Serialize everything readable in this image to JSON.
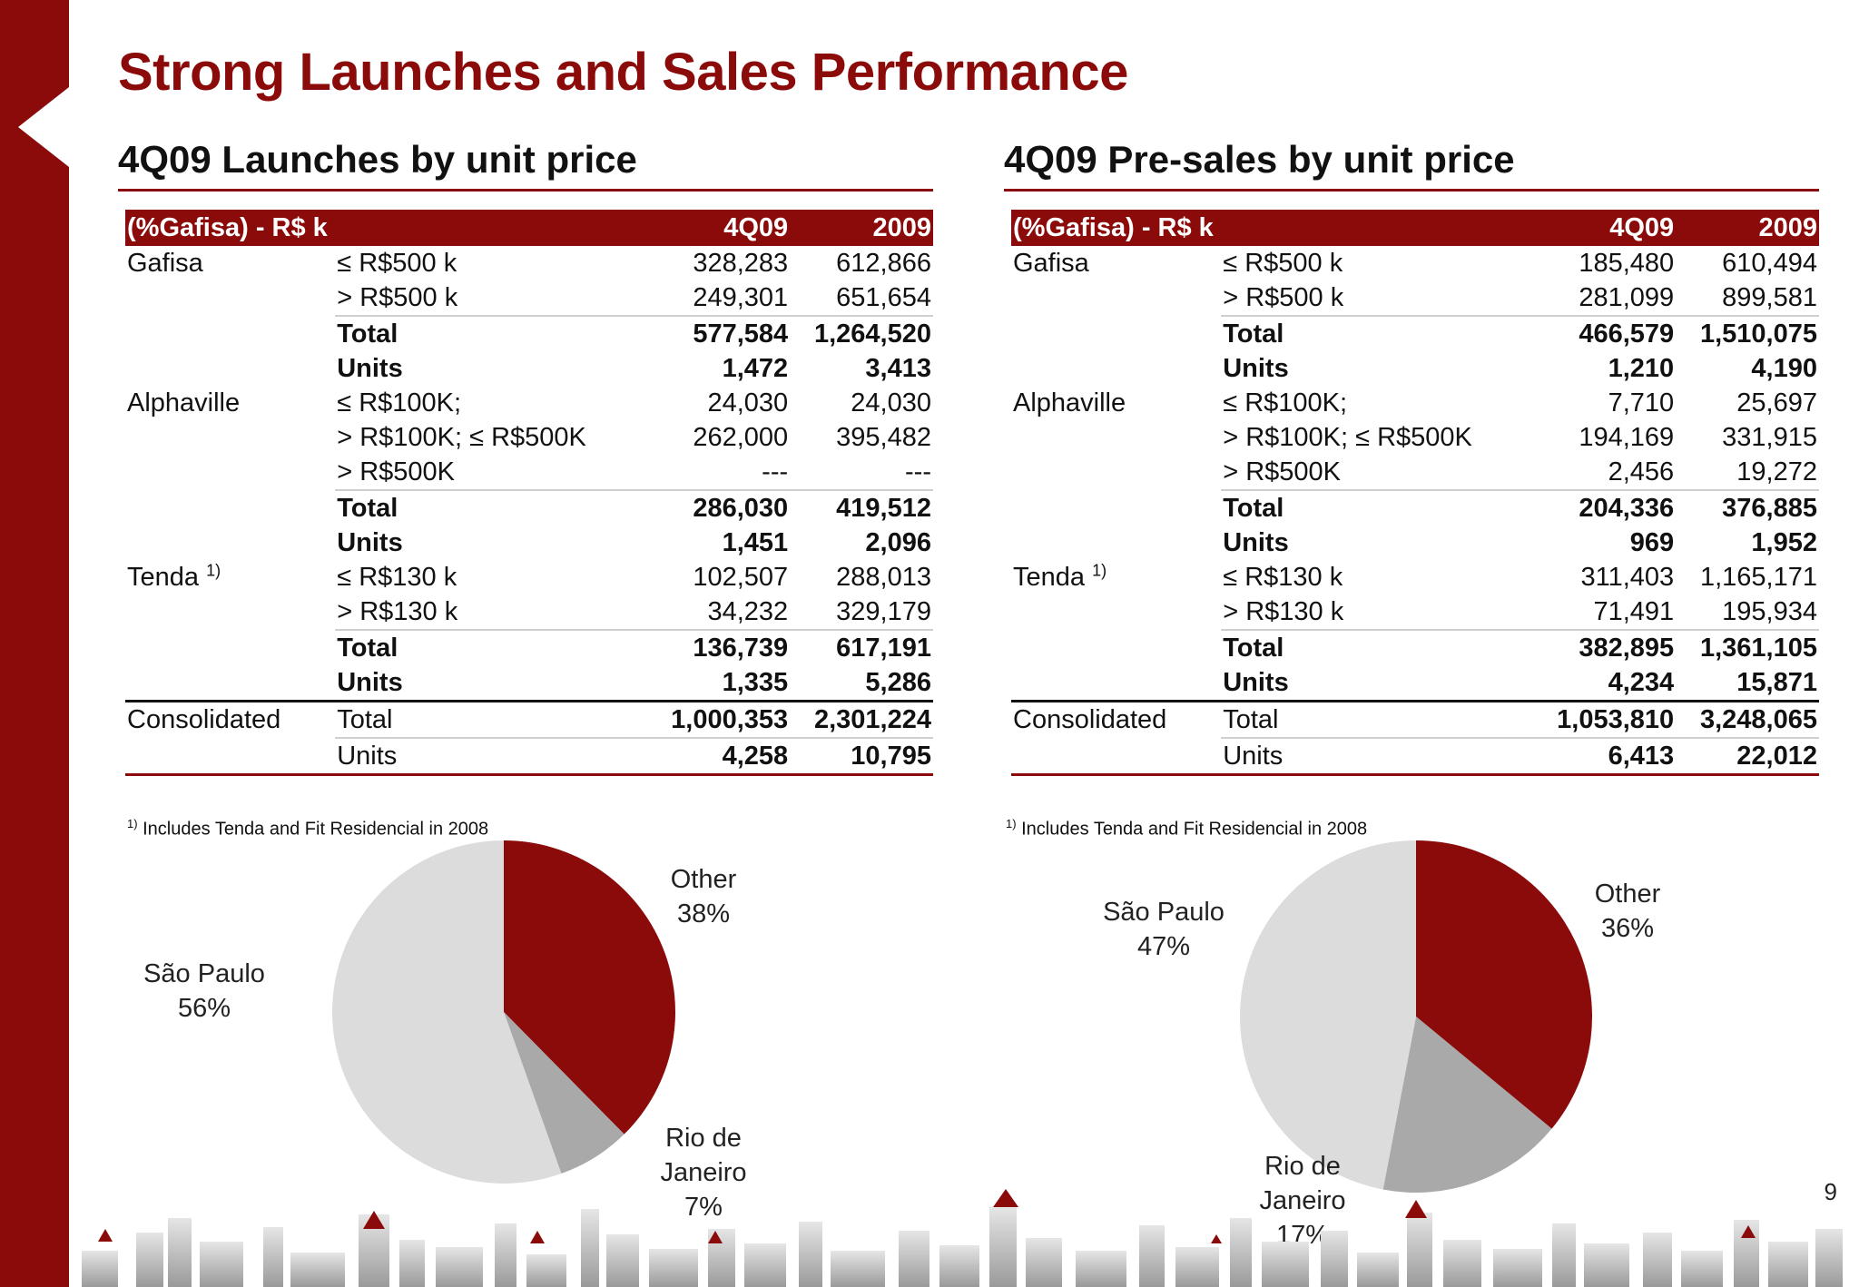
{
  "title": "Strong Launches and Sales Performance",
  "page_number": "9",
  "footnote_marker": "1)",
  "footnote_text": "Includes Tenda and Fit Residencial in 2008",
  "colors": {
    "accent": "#8b0a0a",
    "light_gray": "#dcdcdc",
    "mid_gray": "#a9a9a9"
  },
  "launches": {
    "title": "4Q09 Launches by unit price",
    "header": {
      "label": "(%Gafisa) - R$ k",
      "col1": "4Q09",
      "col2": "2009"
    },
    "rows": [
      {
        "group": "Gafisa",
        "label": "≤ R$500 k",
        "v1": "328,283",
        "v2": "612,866"
      },
      {
        "group": "",
        "label": "> R$500 k",
        "v1": "249,301",
        "v2": "651,654"
      },
      {
        "group": "",
        "label": "Total",
        "v1": "577,584",
        "v2": "1,264,520"
      },
      {
        "group": "",
        "label": "Units",
        "v1": "1,472",
        "v2": "3,413"
      },
      {
        "group": "Alphaville",
        "label": "≤ R$100K;",
        "v1": "24,030",
        "v2": "24,030"
      },
      {
        "group": "",
        "label": "> R$100K; ≤ R$500K",
        "v1": "262,000",
        "v2": "395,482"
      },
      {
        "group": "",
        "label": "> R$500K",
        "v1": "---",
        "v2": "---"
      },
      {
        "group": "",
        "label": "Total",
        "v1": "286,030",
        "v2": "419,512"
      },
      {
        "group": "",
        "label": "Units",
        "v1": "1,451",
        "v2": "2,096"
      },
      {
        "group": "Tenda",
        "label": "≤ R$130 k",
        "v1": "102,507",
        "v2": "288,013"
      },
      {
        "group": "",
        "label": "> R$130 k",
        "v1": "34,232",
        "v2": "329,179"
      },
      {
        "group": "",
        "label": "Total",
        "v1": "136,739",
        "v2": "617,191"
      },
      {
        "group": "",
        "label": "Units",
        "v1": "1,335",
        "v2": "5,286"
      },
      {
        "group": "Consolidated",
        "label": "Total",
        "v1": "1,000,353",
        "v2": "2,301,224"
      },
      {
        "group": "",
        "label": "Units",
        "v1": "4,258",
        "v2": "10,795"
      }
    ]
  },
  "presales": {
    "title": "4Q09 Pre-sales by unit price",
    "header": {
      "label": "(%Gafisa) - R$ k",
      "col1": "4Q09",
      "col2": "2009"
    },
    "rows": [
      {
        "group": "Gafisa",
        "label": "≤ R$500 k",
        "v1": "185,480",
        "v2": "610,494"
      },
      {
        "group": "",
        "label": "> R$500 k",
        "v1": "281,099",
        "v2": "899,581"
      },
      {
        "group": "",
        "label": "Total",
        "v1": "466,579",
        "v2": "1,510,075"
      },
      {
        "group": "",
        "label": "Units",
        "v1": "1,210",
        "v2": "4,190"
      },
      {
        "group": "Alphaville",
        "label": "≤ R$100K;",
        "v1": "7,710",
        "v2": "25,697"
      },
      {
        "group": "",
        "label": "> R$100K; ≤ R$500K",
        "v1": "194,169",
        "v2": "331,915"
      },
      {
        "group": "",
        "label": "> R$500K",
        "v1": "2,456",
        "v2": "19,272"
      },
      {
        "group": "",
        "label": "Total",
        "v1": "204,336",
        "v2": "376,885"
      },
      {
        "group": "",
        "label": "Units",
        "v1": "969",
        "v2": "1,952"
      },
      {
        "group": "Tenda",
        "label": "≤ R$130 k",
        "v1": "311,403",
        "v2": "1,165,171"
      },
      {
        "group": "",
        "label": "> R$130 k",
        "v1": "71,491",
        "v2": "195,934"
      },
      {
        "group": "",
        "label": "Total",
        "v1": "382,895",
        "v2": "1,361,105"
      },
      {
        "group": "",
        "label": "Units",
        "v1": "4,234",
        "v2": "15,871"
      },
      {
        "group": "Consolidated",
        "label": "Total",
        "v1": "1,053,810",
        "v2": "3,248,065"
      },
      {
        "group": "",
        "label": "Units",
        "v1": "6,413",
        "v2": "22,012"
      }
    ]
  },
  "chart_data": [
    {
      "type": "pie",
      "slices": [
        {
          "name": "Other",
          "pct_label": "38%",
          "value": 38,
          "color": "#8b0a0a"
        },
        {
          "name": "Rio de Janeiro",
          "pct_label": "7%",
          "value": 7,
          "color": "#a9a9a9"
        },
        {
          "name": "São Paulo",
          "pct_label": "56%",
          "value": 56,
          "color": "#dcdcdc"
        }
      ]
    },
    {
      "type": "pie",
      "slices": [
        {
          "name": "Other",
          "pct_label": "36%",
          "value": 36,
          "color": "#8b0a0a"
        },
        {
          "name": "Rio de Janeiro",
          "pct_label": "17%",
          "value": 17,
          "color": "#a9a9a9"
        },
        {
          "name": "São Paulo",
          "pct_label": "47%",
          "value": 47,
          "color": "#dcdcdc"
        }
      ]
    }
  ]
}
